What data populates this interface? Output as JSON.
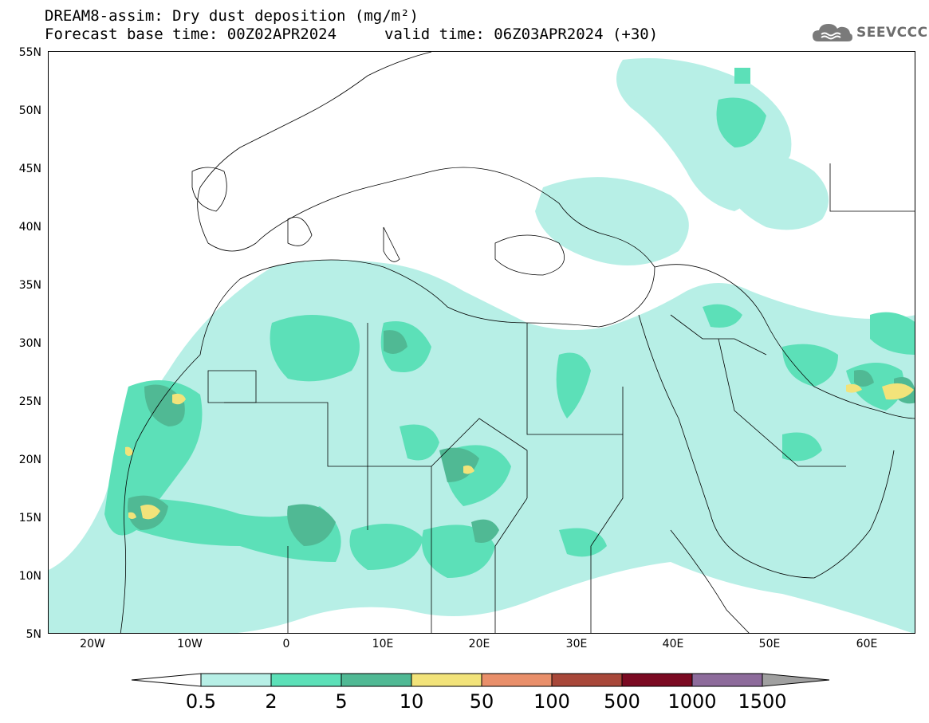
{
  "title": {
    "line1": "DREAM8-assim: Dry dust deposition (mg/m²)",
    "line2": "Forecast base time: 00Z02APR2024",
    "valid": "valid time: 06Z03APR2024 (+30)"
  },
  "logo": {
    "text": "SEEVCCC",
    "icon": "cloud-icon"
  },
  "map": {
    "lat_labels": [
      "55N",
      "50N",
      "45N",
      "40N",
      "35N",
      "30N",
      "25N",
      "20N",
      "15N",
      "10N",
      "5N"
    ],
    "lon_labels": [
      "20W",
      "10W",
      "0",
      "10E",
      "20E",
      "30E",
      "40E",
      "50E",
      "60E"
    ],
    "lon_range": [
      -25,
      65
    ],
    "lat_range": [
      5,
      55
    ]
  },
  "colorbar": {
    "labels": [
      "0.5",
      "2",
      "5",
      "10",
      "50",
      "100",
      "500",
      "1000",
      "1500"
    ],
    "colors": [
      "#b7efe6",
      "#5ce0b8",
      "#50b994",
      "#f2e37a",
      "#e98f6a",
      "#a84739",
      "#7b0a22",
      "#8d6b9b"
    ],
    "under_color": "#ffffff",
    "over_color": "#a0a0a0"
  }
}
